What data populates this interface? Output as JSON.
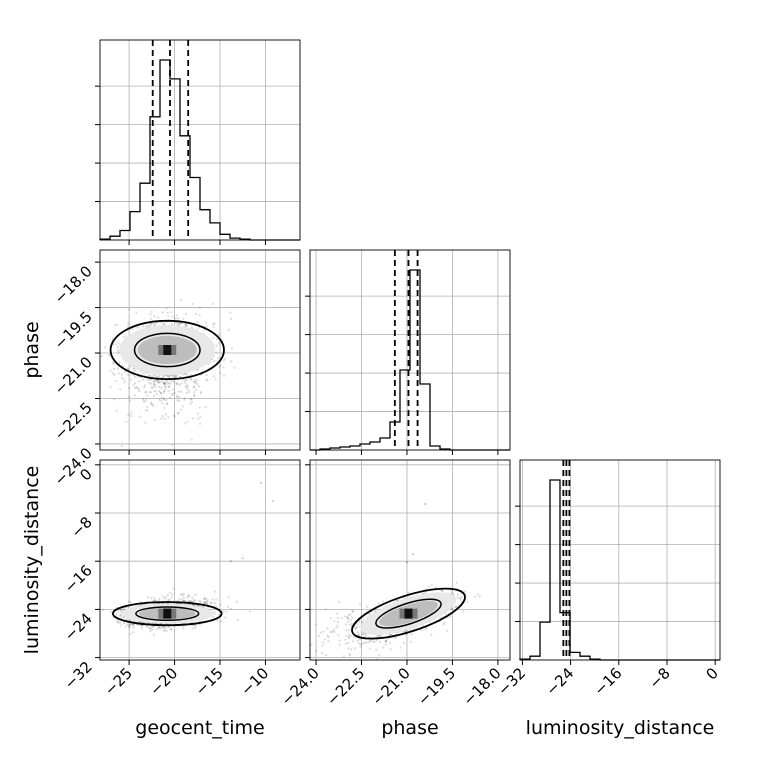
{
  "chart_data": {
    "type": "corner",
    "parameters": [
      "geocent_time",
      "phase",
      "luminosity_distance"
    ],
    "axis_labels": {
      "geocent_time": "geocent_time",
      "phase": "phase",
      "luminosity_distance": "luminosity_distance"
    },
    "ranges": {
      "geocent_time": [
        -28.2,
        -6.2
      ],
      "phase": [
        -24.2,
        -17.6
      ],
      "luminosity_distance": [
        -32.4,
        0.8
      ]
    },
    "ticks": {
      "geocent_time": [
        -25,
        -20,
        -15,
        -10
      ],
      "phase": [
        -24.0,
        -22.5,
        -21.0,
        -19.5,
        -18.0
      ],
      "luminosity_distance": [
        -32,
        -24,
        -16,
        -8,
        0
      ]
    },
    "tick_labels": {
      "geocent_time": [
        "−25",
        "−20",
        "−15",
        "−10"
      ],
      "phase_x": [
        "−24.0",
        "−22.5",
        "−21.0",
        "−19.5",
        "−18.0"
      ],
      "phase_y": [
        "−18.0",
        "−19.5",
        "−21.0",
        "−22.5",
        "−24.0"
      ],
      "luminosity_distance_x": [
        "−32",
        "−24",
        "−16",
        "−8",
        "0"
      ],
      "luminosity_distance_y": [
        "0",
        "−8",
        "−16",
        "−24",
        "−32"
      ]
    },
    "quantiles": {
      "geocent_time": [
        -22.4,
        -20.5,
        -18.5
      ],
      "phase": [
        -21.4,
        -20.95,
        -20.65
      ],
      "luminosity_distance": [
        -25.2,
        -24.7,
        -24.2
      ]
    },
    "histograms": {
      "geocent_time": {
        "edges": [
          -28.2,
          -27.1,
          -26.0,
          -24.9,
          -23.8,
          -22.7,
          -21.6,
          -20.5,
          -19.4,
          -18.3,
          -17.2,
          -16.1,
          -15.0,
          -13.9,
          -12.8,
          -11.7,
          -10.6,
          -9.5,
          -8.4,
          -7.3,
          -6.2
        ],
        "counts": [
          0.5,
          2,
          5,
          15,
          30,
          65,
          95,
          85,
          55,
          33,
          16,
          9,
          3,
          1,
          0.5,
          0,
          0,
          0,
          0,
          0
        ]
      },
      "phase": {
        "edges": [
          -24.2,
          -23.87,
          -23.54,
          -23.21,
          -22.88,
          -22.55,
          -22.22,
          -21.89,
          -21.56,
          -21.23,
          -20.9,
          -20.57,
          -20.24,
          -19.91,
          -19.58,
          -19.25,
          -18.92,
          -18.59,
          -18.26,
          -17.93,
          -17.6
        ],
        "counts": [
          0,
          0.5,
          1,
          1.5,
          2,
          3,
          4,
          6,
          14,
          40,
          90,
          33,
          2,
          0.5,
          0,
          0,
          0,
          0,
          0,
          0
        ]
      },
      "luminosity_distance": {
        "edges": [
          -32.4,
          -30.74,
          -29.08,
          -27.42,
          -25.76,
          -24.1,
          -22.44,
          -20.78,
          -19.12,
          -17.46,
          -15.8,
          -14.14,
          -12.48,
          -10.82,
          -9.16,
          -7.5,
          -5.84,
          -4.18,
          -2.52,
          -0.86,
          0.8
        ],
        "counts": [
          0.5,
          2,
          20,
          95,
          25,
          4,
          2,
          0.5,
          0,
          0,
          0,
          0,
          0,
          0,
          0,
          0,
          0,
          0,
          0,
          0
        ]
      }
    },
    "scatter_centers": {
      "geocent_time_phase": [
        -20.8,
        -20.9
      ],
      "geocent_time_luminosity_distance": [
        -20.8,
        -24.7
      ],
      "phase_luminosity_distance": [
        -20.95,
        -24.7
      ]
    },
    "grid": true,
    "levels": 2
  }
}
